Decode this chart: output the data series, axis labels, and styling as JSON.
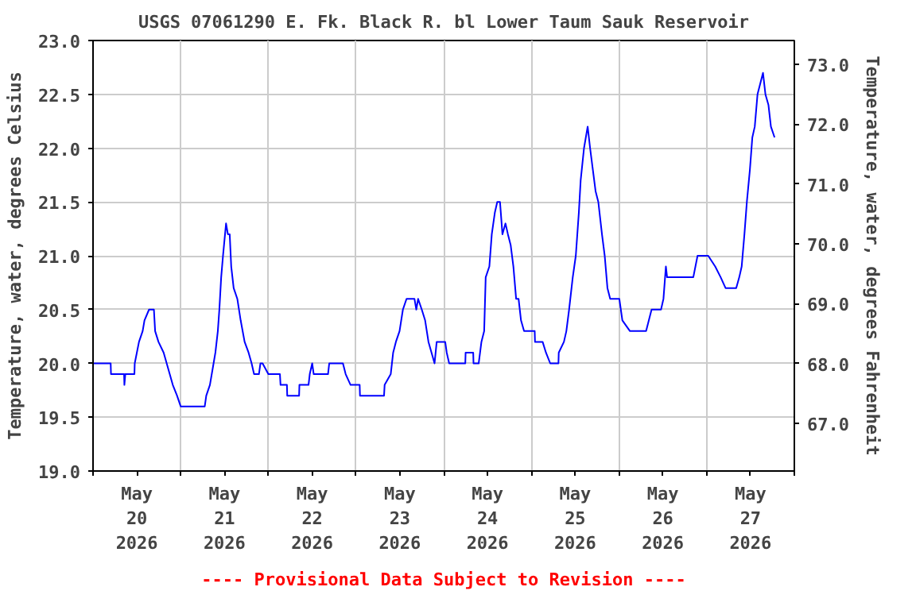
{
  "chart_data": {
    "type": "line",
    "title": "USGS 07061290 E. Fk. Black R. bl Lower Taum Sauk Reservoir",
    "ylabel": "Temperature, water, degrees Celsius",
    "y2label": "Temperature, water, degrees Fahrenheit",
    "annotations": [
      "---- Provisional Data Subject to Revision ----"
    ],
    "xlim": [
      "2026-05-20T00:00",
      "2026-05-28T00:00"
    ],
    "xticks": [
      {
        "value": "2026-05-20T00:00",
        "label": null
      },
      {
        "value": "2026-05-20T12:00",
        "label": "May\n20\n2026"
      },
      {
        "value": "2026-05-21T00:00",
        "label": null
      },
      {
        "value": "2026-05-21T12:00",
        "label": "May\n21\n2026"
      },
      {
        "value": "2026-05-22T00:00",
        "label": null
      },
      {
        "value": "2026-05-22T12:00",
        "label": "May\n22\n2026"
      },
      {
        "value": "2026-05-23T00:00",
        "label": null
      },
      {
        "value": "2026-05-23T12:00",
        "label": "May\n23\n2026"
      },
      {
        "value": "2026-05-24T00:00",
        "label": null
      },
      {
        "value": "2026-05-24T12:00",
        "label": "May\n24\n2026"
      },
      {
        "value": "2026-05-25T00:00",
        "label": null
      },
      {
        "value": "2026-05-25T12:00",
        "label": "May\n25\n2026"
      },
      {
        "value": "2026-05-26T00:00",
        "label": null
      },
      {
        "value": "2026-05-26T12:00",
        "label": "May\n26\n2026"
      },
      {
        "value": "2026-05-27T00:00",
        "label": null
      },
      {
        "value": "2026-05-27T12:00",
        "label": "May\n27\n2026"
      },
      {
        "value": "2026-05-28T00:00",
        "label": null
      }
    ],
    "ylim": [
      19.0,
      23.0
    ],
    "yticks": [
      {
        "value": 19.0,
        "label": "19.0"
      },
      {
        "value": 19.5,
        "label": "19.5"
      },
      {
        "value": 20.0,
        "label": "20.0"
      },
      {
        "value": 20.5,
        "label": "20.5"
      },
      {
        "value": 21.0,
        "label": "21.0"
      },
      {
        "value": 21.5,
        "label": "21.5"
      },
      {
        "value": 22.0,
        "label": "22.0"
      },
      {
        "value": 22.5,
        "label": "22.5"
      },
      {
        "value": 23.0,
        "label": "23.0"
      }
    ],
    "y2lim": [
      66.2,
      73.4
    ],
    "y2ticks": [
      {
        "value": 67,
        "label": "67.0"
      },
      {
        "value": 68,
        "label": "68.0"
      },
      {
        "value": 69,
        "label": "69.0"
      },
      {
        "value": 70,
        "label": "70.0"
      },
      {
        "value": 71,
        "label": "71.0"
      },
      {
        "value": 72,
        "label": "72.0"
      },
      {
        "value": 73,
        "label": "73.0"
      }
    ],
    "grid": true,
    "series": [
      {
        "color": "#0000ff",
        "x": [
          "2026-05-20T00:00",
          "2026-05-20T04:50",
          "2026-05-20T04:55",
          "2026-05-20T08:30",
          "2026-05-20T08:35",
          "2026-05-20T08:50",
          "2026-05-20T11:20",
          "2026-05-20T11:25",
          "2026-05-20T12:35",
          "2026-05-20T13:35",
          "2026-05-20T14:05",
          "2026-05-20T15:20",
          "2026-05-20T16:40",
          "2026-05-20T17:00",
          "2026-05-20T17:55",
          "2026-05-20T19:20",
          "2026-05-20T20:10",
          "2026-05-20T21:00",
          "2026-05-20T21:50",
          "2026-05-20T23:00",
          "2026-05-21T00:00",
          "2026-05-21T06:35",
          "2026-05-21T07:00",
          "2026-05-21T08:00",
          "2026-05-21T09:00",
          "2026-05-21T09:30",
          "2026-05-21T10:10",
          "2026-05-21T10:35",
          "2026-05-21T11:05",
          "2026-05-21T11:35",
          "2026-05-21T12:25",
          "2026-05-21T12:55",
          "2026-05-21T13:25",
          "2026-05-21T13:50",
          "2026-05-21T14:30",
          "2026-05-21T15:30",
          "2026-05-21T16:25",
          "2026-05-21T17:30",
          "2026-05-21T18:35",
          "2026-05-21T19:25",
          "2026-05-21T20:05",
          "2026-05-21T21:25",
          "2026-05-21T21:50",
          "2026-05-21T22:25",
          "2026-05-22T00:00",
          "2026-05-22T03:10",
          "2026-05-22T03:20",
          "2026-05-22T05:05",
          "2026-05-22T05:10",
          "2026-05-22T08:25",
          "2026-05-22T08:30",
          "2026-05-22T11:00",
          "2026-05-22T11:20",
          "2026-05-22T12:00",
          "2026-05-22T12:25",
          "2026-05-22T16:20",
          "2026-05-22T16:40",
          "2026-05-22T20:25",
          "2026-05-22T21:10",
          "2026-05-22T22:30",
          "2026-05-23T01:00",
          "2026-05-23T01:05",
          "2026-05-23T07:40",
          "2026-05-23T07:50",
          "2026-05-23T09:30",
          "2026-05-23T10:10",
          "2026-05-23T10:55",
          "2026-05-23T11:55",
          "2026-05-23T12:50",
          "2026-05-23T13:50",
          "2026-05-23T16:00",
          "2026-05-23T16:30",
          "2026-05-23T17:00",
          "2026-05-23T18:00",
          "2026-05-23T18:55",
          "2026-05-23T19:50",
          "2026-05-23T20:40",
          "2026-05-23T21:30",
          "2026-05-23T22:05",
          "2026-05-24T00:25",
          "2026-05-24T00:50",
          "2026-05-24T01:30",
          "2026-05-24T05:55",
          "2026-05-24T06:00",
          "2026-05-24T08:05",
          "2026-05-24T08:10",
          "2026-05-24T09:35",
          "2026-05-24T10:20",
          "2026-05-24T11:05",
          "2026-05-24T11:30",
          "2026-05-24T12:30",
          "2026-05-24T13:10",
          "2026-05-24T14:00",
          "2026-05-24T14:40",
          "2026-05-24T15:25",
          "2026-05-24T16:05",
          "2026-05-24T16:55",
          "2026-05-24T17:35",
          "2026-05-24T18:20",
          "2026-05-24T19:05",
          "2026-05-24T19:50",
          "2026-05-24T20:30",
          "2026-05-24T21:10",
          "2026-05-24T22:00",
          "2026-05-25T00:55",
          "2026-05-25T01:00",
          "2026-05-25T03:05",
          "2026-05-25T04:00",
          "2026-05-25T05:10",
          "2026-05-25T07:25",
          "2026-05-25T07:30",
          "2026-05-25T08:55",
          "2026-05-25T09:35",
          "2026-05-25T10:20",
          "2026-05-25T11:20",
          "2026-05-25T12:10",
          "2026-05-25T13:00",
          "2026-05-25T13:30",
          "2026-05-25T14:25",
          "2026-05-25T15:25",
          "2026-05-25T16:05",
          "2026-05-25T16:50",
          "2026-05-25T17:35",
          "2026-05-25T18:20",
          "2026-05-25T19:20",
          "2026-05-25T20:05",
          "2026-05-25T20:50",
          "2026-05-25T21:35",
          "2026-05-26T00:05",
          "2026-05-26T00:55",
          "2026-05-26T03:00",
          "2026-05-26T07:25",
          "2026-05-26T08:10",
          "2026-05-26T08:55",
          "2026-05-26T11:30",
          "2026-05-26T12:10",
          "2026-05-26T12:50",
          "2026-05-26T13:10",
          "2026-05-26T20:20",
          "2026-05-26T21:30",
          "2026-05-27T00:25",
          "2026-05-27T02:20",
          "2026-05-27T03:50",
          "2026-05-27T05:10",
          "2026-05-27T08:05",
          "2026-05-27T08:55",
          "2026-05-27T09:35",
          "2026-05-27T10:20",
          "2026-05-27T11:00",
          "2026-05-27T11:50",
          "2026-05-27T12:30",
          "2026-05-27T13:10",
          "2026-05-27T13:55",
          "2026-05-27T14:40",
          "2026-05-27T15:25",
          "2026-05-27T16:05",
          "2026-05-27T16:55",
          "2026-05-27T17:35",
          "2026-05-27T18:35"
        ],
        "values": [
          20.0,
          20.0,
          19.9,
          19.9,
          19.8,
          19.9,
          19.9,
          20.0,
          20.2,
          20.3,
          20.4,
          20.5,
          20.5,
          20.3,
          20.2,
          20.1,
          20.0,
          19.9,
          19.8,
          19.7,
          19.6,
          19.6,
          19.7,
          19.8,
          20.0,
          20.1,
          20.3,
          20.5,
          20.8,
          21.0,
          21.3,
          21.2,
          21.2,
          20.9,
          20.7,
          20.6,
          20.4,
          20.2,
          20.1,
          20.0,
          19.9,
          19.9,
          20.0,
          20.0,
          19.9,
          19.9,
          19.8,
          19.8,
          19.7,
          19.7,
          19.8,
          19.8,
          19.9,
          20.0,
          19.9,
          19.9,
          20.0,
          20.0,
          19.9,
          19.8,
          19.8,
          19.7,
          19.7,
          19.8,
          19.9,
          20.1,
          20.2,
          20.3,
          20.5,
          20.6,
          20.6,
          20.5,
          20.6,
          20.5,
          20.4,
          20.2,
          20.1,
          20.0,
          20.2,
          20.2,
          20.1,
          20.0,
          20.0,
          20.1,
          20.1,
          20.0,
          20.0,
          20.2,
          20.3,
          20.8,
          20.9,
          21.2,
          21.4,
          21.5,
          21.5,
          21.2,
          21.3,
          21.2,
          21.1,
          20.9,
          20.6,
          20.6,
          20.4,
          20.3,
          20.3,
          20.2,
          20.2,
          20.1,
          20.0,
          20.0,
          20.1,
          20.2,
          20.3,
          20.5,
          20.8,
          21.0,
          21.4,
          21.7,
          22.0,
          22.2,
          22.0,
          21.8,
          21.6,
          21.5,
          21.2,
          21.0,
          20.7,
          20.6,
          20.6,
          20.4,
          20.3,
          20.3,
          20.4,
          20.5,
          20.5,
          20.6,
          20.9,
          20.8,
          20.8,
          21.0,
          21.0,
          20.9,
          20.8,
          20.7,
          20.7,
          20.8,
          20.9,
          21.2,
          21.5,
          21.8,
          22.1,
          22.2,
          22.5,
          22.6,
          22.7,
          22.5,
          22.4,
          22.2,
          22.1
        ]
      }
    ]
  }
}
